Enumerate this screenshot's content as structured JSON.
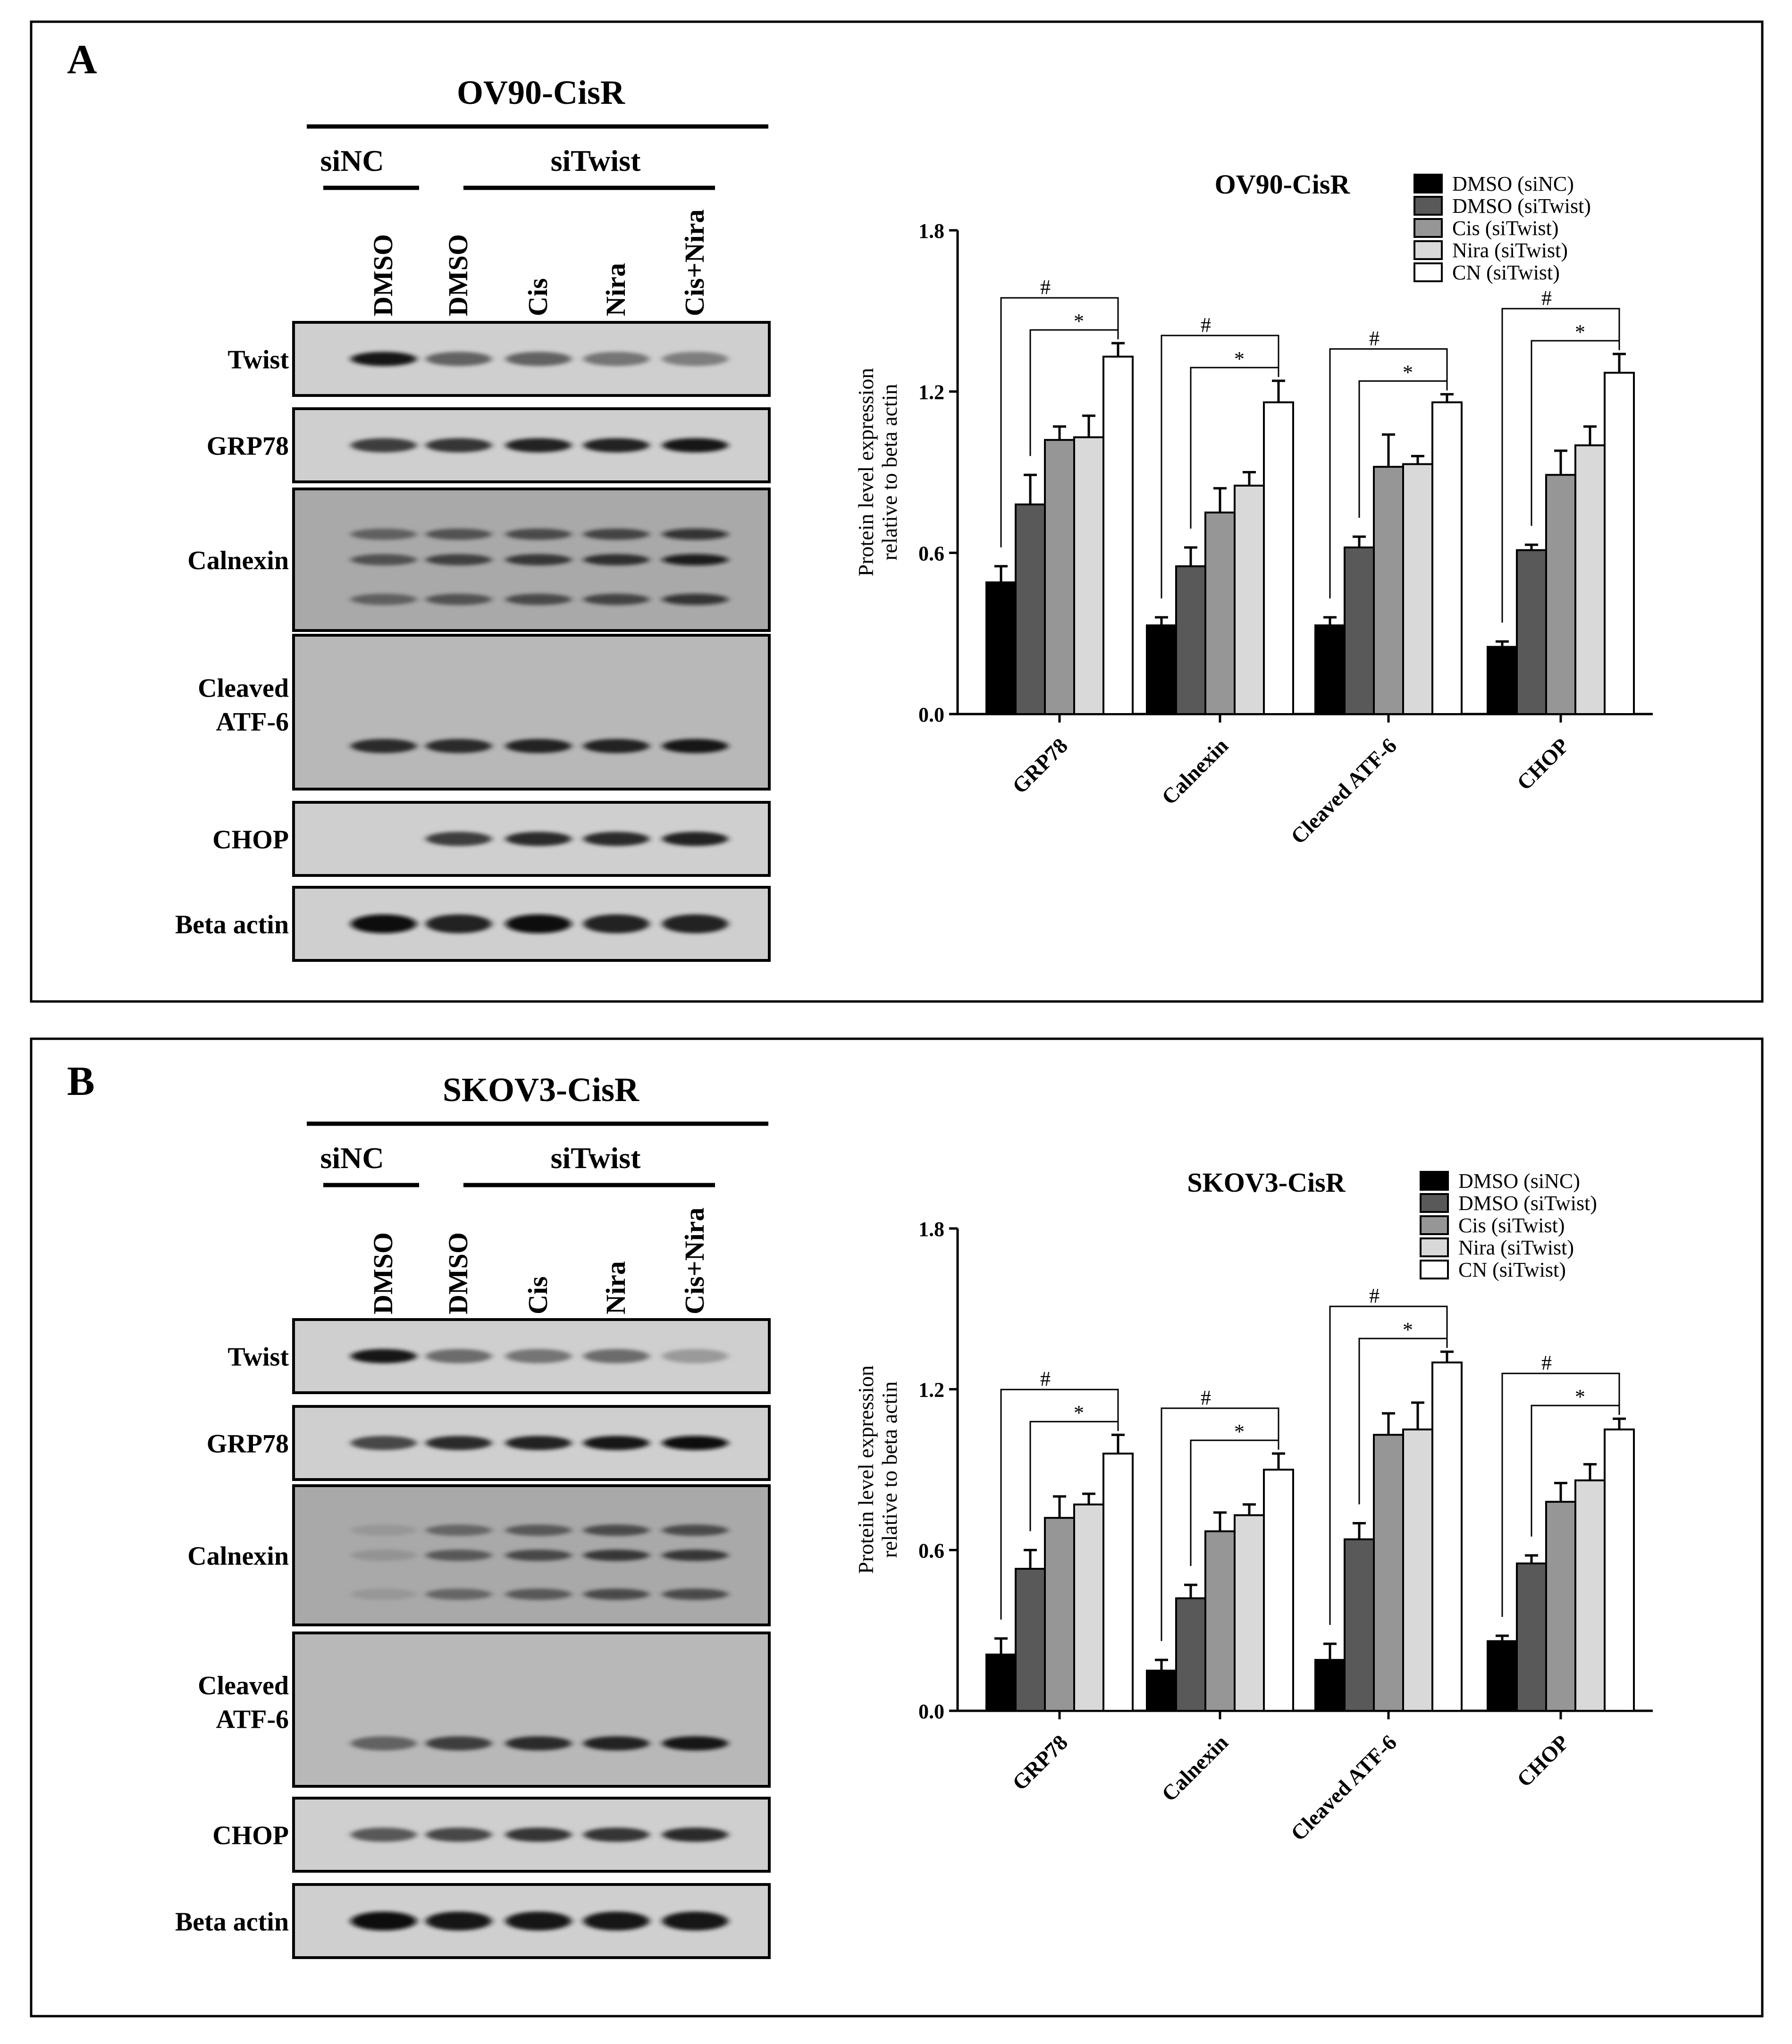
{
  "panels": [
    {
      "letter": "A",
      "blot": {
        "cell_line": "OV90-CisR",
        "group_nc": "siNC",
        "group_twist": "siTwist",
        "lanes": [
          "DMSO",
          "DMSO",
          "Cis",
          "Nira",
          "Cis+Nira"
        ],
        "rows": [
          {
            "label": "Twist",
            "intensities": [
              0.95,
              0.55,
              0.55,
              0.45,
              0.4
            ]
          },
          {
            "label": "GRP78",
            "intensities": [
              0.75,
              0.8,
              0.9,
              0.9,
              0.95
            ]
          },
          {
            "label": "Calnexin",
            "intensities": [
              0.7,
              0.8,
              0.85,
              0.9,
              1.0
            ]
          },
          {
            "label": "Cleaved",
            "label2": "ATF-6",
            "intensities": [
              0.85,
              0.85,
              0.9,
              0.9,
              0.95
            ]
          },
          {
            "label": "CHOP",
            "intensities": [
              0.0,
              0.75,
              0.85,
              0.85,
              0.9
            ]
          },
          {
            "label": "Beta actin",
            "intensities": [
              1.0,
              0.9,
              1.0,
              0.9,
              0.9
            ]
          }
        ]
      },
      "chart_data": {
        "type": "bar",
        "title": "OV90-CisR",
        "ylabel": "Protein level expression",
        "ylabel2": "relative to beta actin",
        "ylim": [
          0,
          1.8
        ],
        "yticks": [
          "0.0",
          "0.6",
          "1.2",
          "1.8"
        ],
        "categories": [
          "GRP78",
          "Calnexin",
          "Cleaved ATF-6",
          "CHOP"
        ],
        "legend_position": "top-right",
        "series": [
          {
            "name": "DMSO (siNC)",
            "color": "#000000",
            "values": [
              0.49,
              0.33,
              0.33,
              0.25
            ],
            "errors": [
              0.06,
              0.03,
              0.03,
              0.02
            ]
          },
          {
            "name": "DMSO (siTwist)",
            "color": "#595959",
            "values": [
              0.78,
              0.55,
              0.62,
              0.61
            ],
            "errors": [
              0.11,
              0.07,
              0.04,
              0.02
            ]
          },
          {
            "name": "Cis (siTwist)",
            "color": "#969696",
            "values": [
              1.02,
              0.75,
              0.92,
              0.89
            ],
            "errors": [
              0.05,
              0.09,
              0.12,
              0.09
            ]
          },
          {
            "name": "Nira (siTwist)",
            "color": "#d9d9d9",
            "values": [
              1.03,
              0.85,
              0.93,
              1.0
            ],
            "errors": [
              0.08,
              0.05,
              0.03,
              0.07
            ]
          },
          {
            "name": "CN (siTwist)",
            "color": "#ffffff",
            "values": [
              1.33,
              1.16,
              1.16,
              1.27
            ],
            "errors": [
              0.05,
              0.08,
              0.03,
              0.07
            ]
          }
        ],
        "annotations": [
          {
            "category": 0,
            "outer": "#",
            "inner": "*"
          },
          {
            "category": 1,
            "outer": "#",
            "inner": "*"
          },
          {
            "category": 2,
            "outer": "#",
            "inner": "*"
          },
          {
            "category": 3,
            "outer": "#",
            "inner": "*"
          }
        ]
      }
    },
    {
      "letter": "B",
      "blot": {
        "cell_line": "SKOV3-CisR",
        "group_nc": "siNC",
        "group_twist": "siTwist",
        "lanes": [
          "DMSO",
          "DMSO",
          "Cis",
          "Nira",
          "Cis+Nira"
        ],
        "rows": [
          {
            "label": "Twist",
            "intensities": [
              0.95,
              0.5,
              0.45,
              0.5,
              0.25
            ]
          },
          {
            "label": "GRP78",
            "intensities": [
              0.7,
              0.85,
              0.9,
              0.95,
              1.0
            ]
          },
          {
            "label": "Calnexin",
            "intensities": [
              0.3,
              0.65,
              0.75,
              0.85,
              0.85
            ]
          },
          {
            "label": "Cleaved",
            "label2": "ATF-6",
            "intensities": [
              0.55,
              0.75,
              0.85,
              0.9,
              0.95
            ]
          },
          {
            "label": "CHOP",
            "intensities": [
              0.6,
              0.7,
              0.8,
              0.8,
              0.85
            ]
          },
          {
            "label": "Beta actin",
            "intensities": [
              1.0,
              0.95,
              0.95,
              0.95,
              0.95
            ]
          }
        ]
      },
      "chart_data": {
        "type": "bar",
        "title": "SKOV3-CisR",
        "ylabel": "Protein level expression",
        "ylabel2": "relative to beta actin",
        "ylim": [
          0,
          1.8
        ],
        "yticks": [
          "0.0",
          "0.6",
          "1.2",
          "1.8"
        ],
        "categories": [
          "GRP78",
          "Calnexin",
          "Cleaved ATF-6",
          "CHOP"
        ],
        "legend_position": "top-right",
        "series": [
          {
            "name": "DMSO (siNC)",
            "color": "#000000",
            "values": [
              0.21,
              0.15,
              0.19,
              0.26
            ],
            "errors": [
              0.06,
              0.04,
              0.06,
              0.02
            ]
          },
          {
            "name": "DMSO (siTwist)",
            "color": "#595959",
            "values": [
              0.53,
              0.42,
              0.64,
              0.55
            ],
            "errors": [
              0.07,
              0.05,
              0.06,
              0.03
            ]
          },
          {
            "name": "Cis (siTwist)",
            "color": "#969696",
            "values": [
              0.72,
              0.67,
              1.03,
              0.78
            ],
            "errors": [
              0.08,
              0.07,
              0.08,
              0.07
            ]
          },
          {
            "name": "Nira (siTwist)",
            "color": "#d9d9d9",
            "values": [
              0.77,
              0.73,
              1.05,
              0.86
            ],
            "errors": [
              0.04,
              0.04,
              0.1,
              0.06
            ]
          },
          {
            "name": "CN (siTwist)",
            "color": "#ffffff",
            "values": [
              0.96,
              0.9,
              1.3,
              1.05
            ],
            "errors": [
              0.07,
              0.06,
              0.04,
              0.04
            ]
          }
        ],
        "annotations": [
          {
            "category": 0,
            "outer": "#",
            "inner": "*"
          },
          {
            "category": 1,
            "outer": "#",
            "inner": "*"
          },
          {
            "category": 2,
            "outer": "#",
            "inner": "*"
          },
          {
            "category": 3,
            "outer": "#",
            "inner": "*"
          }
        ]
      }
    }
  ]
}
